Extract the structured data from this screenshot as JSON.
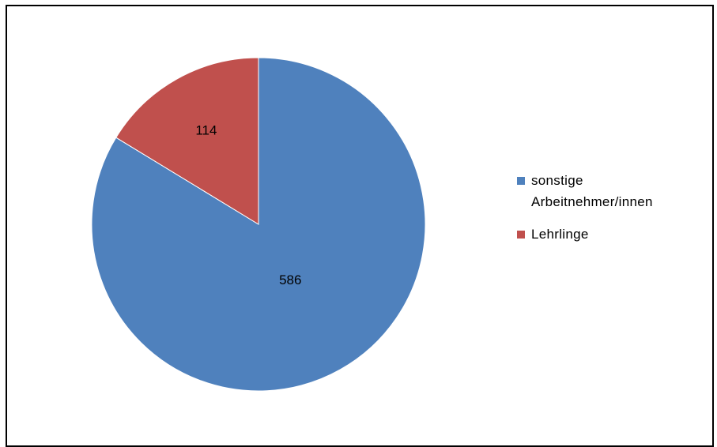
{
  "chart_data": {
    "type": "pie",
    "categories": [
      "sonstige Arbeitnehmer/innen",
      "Lehrlinge"
    ],
    "values": [
      586,
      114
    ],
    "data_labels": [
      "586",
      "114"
    ],
    "colors": [
      "#4f81bd",
      "#c0504d"
    ],
    "legend": {
      "position": "right",
      "entries": [
        "sonstige Arbeitnehmer/innen",
        "Lehrlinge"
      ]
    },
    "start_angle_deg": 0,
    "direction": "clockwise"
  }
}
